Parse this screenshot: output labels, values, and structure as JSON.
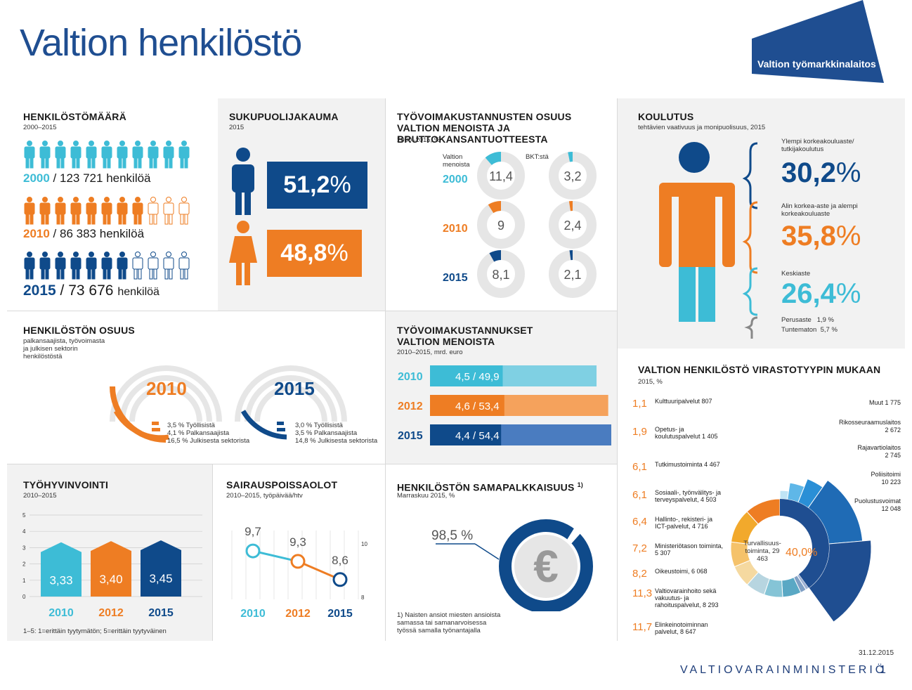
{
  "page": {
    "title": "Valtion henkilöstö",
    "logo_text": "Valtion työmarkkinalaitos",
    "date": "31.12.2015",
    "ministry": "VALTIOVARAINMINISTERIÖ",
    "page_number": "1"
  },
  "colors": {
    "cyan": "#3dbcd6",
    "orange": "#ee7d23",
    "navy": "#0f4a8a",
    "grey": "#e6e6e6",
    "title_blue": "#1f4e91"
  },
  "headcount": {
    "title": "HENKILÖSTÖMÄÄRÄ",
    "subtitle": "2000–2015",
    "unit": "henkilöä",
    "rows": [
      {
        "year": "2000",
        "count": "123 721",
        "filled": 11,
        "total": 11,
        "label_unit": "henkilöä"
      },
      {
        "year": "2010",
        "count": "86 383",
        "filled": 8,
        "total": 11,
        "label_unit": "henkilöä"
      },
      {
        "year": "2015",
        "count": "73 676",
        "filled": 7,
        "total": 11,
        "label_unit": "henkilöä"
      }
    ]
  },
  "gender": {
    "title": "SUKUPUOLIJAKAUMA",
    "subtitle": "2015",
    "male": "51,2",
    "female": "48,8",
    "pct": "%"
  },
  "labour_cost_share": {
    "title": "TYÖVOIMAKUSTANNUSTEN OSUUS VALTION MENOISTA JA BRUTTOKANSANTUOTTEESTA",
    "subtitle": "2000–2015, %",
    "col1": "Valtion menoista",
    "col2": "BKT:stä",
    "rows": [
      {
        "year": "2000",
        "spend": "11,4",
        "gdp": "3,2"
      },
      {
        "year": "2010",
        "spend": "9",
        "gdp": "2,4"
      },
      {
        "year": "2015",
        "spend": "8,1",
        "gdp": "2,1"
      }
    ]
  },
  "education": {
    "title": "KOULUTUS",
    "subtitle": "tehtävien vaativuus ja monipuolisuus, 2015",
    "higher_label": "Ylempi korkeakouluaste/ tutkijakoulutus",
    "higher": "30,2",
    "lower_label": "Alin korkea-aste ja alempi korkeakouluaste",
    "lower": "35,8",
    "secondary_label": "Keskiaste",
    "secondary": "26,4",
    "basic_label": "Perusaste",
    "basic": "1,9 %",
    "unknown_label": "Tuntematon",
    "unknown": "5,7 %",
    "pct": "%"
  },
  "share": {
    "title": "HENKILÖSTÖN OSUUS",
    "subtitle": "palkansaajista, työvoimasta ja julkisen sektorin henkilöstöstä",
    "y2010": {
      "year": "2010",
      "l1": "3,5 % Työllisistä",
      "l2": "4,1 % Palkansaajista",
      "l3": "16,5 % Julkisesta sektorista"
    },
    "y2015": {
      "year": "2015",
      "l1": "3,0 % Työllisistä",
      "l2": "3,5 % Palkansaajista",
      "l3": "14,8 % Julkisesta sektorista"
    }
  },
  "labour_costs": {
    "title": "TYÖVOIMAKUSTANNUKSET VALTION MENOISTA",
    "subtitle": "2010–2015, mrd. euro",
    "rows": [
      {
        "year": "2010",
        "label": "4,5 / 49,9"
      },
      {
        "year": "2012",
        "label": "4,6 / 53,4"
      },
      {
        "year": "2015",
        "label": "4,4 / 54,4"
      }
    ]
  },
  "agency": {
    "title": "VALTION HENKILÖSTÖ VIRASTOTYYPIN MUKAAN",
    "subtitle": "2015, %",
    "center_pct": "40,0%",
    "center_label": "Turvallisuus-toiminta, 29 463",
    "left": [
      {
        "pct": "1,1",
        "name": "Kulttuuripalvelut",
        "n": "807"
      },
      {
        "pct": "1,9",
        "name": "Opetus- ja koulutuspalvelut",
        "n": "1 405"
      },
      {
        "pct": "6,1",
        "name": "Tutkimustoiminta",
        "n": "4 467"
      },
      {
        "pct": "6,1",
        "name": "Sosiaali-, työnvälitys- ja terveyspalvelut, 4 503",
        "n": ""
      },
      {
        "pct": "6,4",
        "name": "Hallinto-, rekisteri- ja ICT-palvelut, 4 716",
        "n": ""
      },
      {
        "pct": "7,2",
        "name": "Ministeriötason toiminta, 5 307",
        "n": ""
      },
      {
        "pct": "8,2",
        "name": "Oikeustoimi, 6 068",
        "n": ""
      },
      {
        "pct": "11,3",
        "name": "Valtiovarainhoito sekä vakuutus- ja rahoituspalvelut, 8 293",
        "n": ""
      },
      {
        "pct": "11,7",
        "name": "Elinkeinotoiminnan palvelut, 8 647",
        "n": ""
      }
    ],
    "right": [
      {
        "name": "Muut",
        "n": "1 775"
      },
      {
        "name": "Rikosseuraamuslaitos",
        "n": "2 672"
      },
      {
        "name": "Rajavartiolaitos",
        "n": "2 745"
      },
      {
        "name": "Poliisitoimi",
        "n": "10 223"
      },
      {
        "name": "Puolustusvoimat",
        "n": "12 048"
      }
    ]
  },
  "wellbeing": {
    "title": "TYÖHYVINVOINTI",
    "subtitle": "2010–2015",
    "note": "1–5: 1=erittäin tyytymätön; 5=erittäin tyytyväinen"
  },
  "sick": {
    "title": "SAIRAUSPOISSAOLOT",
    "subtitle": "2010–2015, työpäivää/htv"
  },
  "equal_pay": {
    "title": "HENKILÖSTÖN SAMAPALKKAISUUS",
    "sup": "1)",
    "subtitle": "Marraskuu 2015, %",
    "value": "98,5 %",
    "note": "1) Naisten ansiot miesten ansioista samassa tai samanarvoisessa työssä samalla työnantajalla"
  },
  "chart_data": [
    {
      "type": "bar",
      "title": "TYÖHYVINVOINTI",
      "categories": [
        "2010",
        "2012",
        "2015"
      ],
      "values": [
        3.33,
        3.4,
        3.45
      ],
      "value_labels": [
        "3,33",
        "3,40",
        "3,45"
      ],
      "ylim": [
        0,
        5
      ],
      "yticks": [
        "0",
        "1",
        "2",
        "3",
        "4",
        "5"
      ],
      "colors": [
        "#3dbcd6",
        "#ee7d23",
        "#0f4a8a"
      ]
    },
    {
      "type": "line",
      "title": "SAIRAUSPOISSAOLOT",
      "categories": [
        "2010",
        "2012",
        "2015"
      ],
      "values": [
        9.7,
        9.3,
        8.6
      ],
      "value_labels": [
        "9,7",
        "9,3",
        "8,6"
      ],
      "ylim": [
        8,
        10
      ],
      "yticks": [
        "8",
        "10"
      ],
      "colors": [
        "#3dbcd6",
        "#ee7d23",
        "#0f4a8a"
      ]
    },
    {
      "type": "bar",
      "title": "TYÖVOIMAKUSTANNUKSET VALTION MENOISTA",
      "categories": [
        "2010",
        "2012",
        "2015"
      ],
      "series": [
        {
          "values": [
            4.5,
            4.6,
            4.4
          ]
        },
        {
          "values": [
            49.9,
            53.4,
            54.4
          ]
        }
      ]
    },
    {
      "type": "pie",
      "title": "VALTION HENKILÖSTÖ VIRASTOTYYPIN MUKAAN",
      "categories": [
        "Turvallisuustoiminta",
        "Kulttuuripalvelut",
        "Opetus- ja koulutuspalvelut",
        "Tutkimustoiminta",
        "Sosiaali-, työnvälitys- ja terveyspalvelut",
        "Hallinto-, rekisteri- ja ICT-palvelut",
        "Ministeriötason toiminta",
        "Oikeustoimi",
        "Valtiovarainhoito sekä vakuutus- ja rahoituspalvelut",
        "Elinkeinotoiminnan palvelut"
      ],
      "values": [
        40.0,
        1.1,
        1.9,
        6.1,
        6.1,
        6.4,
        7.2,
        8.2,
        11.3,
        11.7
      ]
    }
  ]
}
